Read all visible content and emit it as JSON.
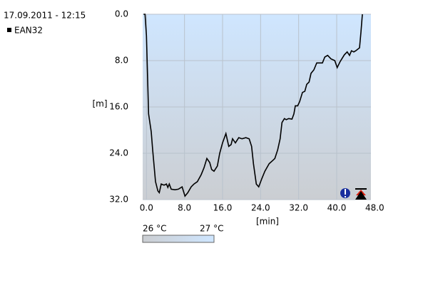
{
  "chart_data": {
    "type": "line",
    "title": "17.09.2011 - 12:15",
    "x_label": "[min]",
    "y_label": "[m]",
    "x": [
      -0.6,
      -0.3,
      0,
      0.45,
      1.0,
      1.3,
      1.9,
      2.4,
      2.7,
      3.1,
      3.7,
      4.2,
      4.5,
      4.8,
      5.2,
      6.0,
      6.7,
      7.5,
      8.1,
      8.7,
      9.4,
      10.0,
      10.7,
      11.5,
      12.1,
      12.7,
      13.3,
      13.7,
      14.2,
      14.9,
      15.4,
      16.0,
      16.7,
      17.3,
      17.8,
      18.1,
      18.7,
      19.4,
      20.1,
      20.9,
      21.6,
      22.1,
      22.5,
      23.1,
      23.6,
      24.3,
      24.9,
      25.8,
      26.6,
      27.0,
      27.6,
      28.1,
      28.5,
      29.0,
      29.4,
      29.9,
      30.6,
      31.0,
      31.3,
      31.8,
      32.2,
      32.8,
      33.3,
      33.7,
      34.2,
      34.6,
      35.2,
      35.8,
      36.6,
      37.0,
      37.5,
      38.1,
      38.8,
      39.6,
      40.1,
      40.7,
      41.6,
      42.2,
      42.7,
      43.1,
      43.6,
      44.0,
      44.8,
      45.1,
      45.4
    ],
    "series": [
      {
        "name": "EAN32",
        "color": "#000000",
        "values": [
          0,
          0,
          3.7,
          17.2,
          20.3,
          23.4,
          28.9,
          30.5,
          30.8,
          29.3,
          29.5,
          29.3,
          29.9,
          29.3,
          30.2,
          30.3,
          30.2,
          29.8,
          31.4,
          30.8,
          29.8,
          29.3,
          28.9,
          27.7,
          26.5,
          24.9,
          25.6,
          26.8,
          27.1,
          26.2,
          24.0,
          22.2,
          20.6,
          22.8,
          22.5,
          21.5,
          22.2,
          21.3,
          21.5,
          21.3,
          21.5,
          22.8,
          25.8,
          29.3,
          29.8,
          28.3,
          27.1,
          25.8,
          25.2,
          24.9,
          23.4,
          21.5,
          18.7,
          18.0,
          18.2,
          18.0,
          18.1,
          17.2,
          15.8,
          15.8,
          15.1,
          13.5,
          13.3,
          12.1,
          11.7,
          10.2,
          9.6,
          8.4,
          8.4,
          8.4,
          7.4,
          7.1,
          7.7,
          8.0,
          9.2,
          8.2,
          7.0,
          6.5,
          7.1,
          6.3,
          6.5,
          6.3,
          5.8,
          3.1,
          0
        ]
      }
    ],
    "xlim": [
      -0.8,
      47.2
    ],
    "ylim": [
      32,
      0
    ],
    "xticks": [
      {
        "value": 0,
        "label": "0.0"
      },
      {
        "value": 8,
        "label": "8.0"
      },
      {
        "value": 16,
        "label": "16.0"
      },
      {
        "value": 24,
        "label": "24.0"
      },
      {
        "value": 32,
        "label": "32.0"
      },
      {
        "value": 40,
        "label": "40.0"
      },
      {
        "value": 48,
        "label": "48.0"
      }
    ],
    "yticks": [
      {
        "value": 0,
        "label": "0.0"
      },
      {
        "value": 8,
        "label": "8.0"
      },
      {
        "value": 16,
        "label": "16.0"
      },
      {
        "value": 24,
        "label": "24.0"
      },
      {
        "value": 32,
        "label": "32.0"
      }
    ],
    "grid": true,
    "temperature_legend": {
      "min_label": "26 °C",
      "max_label": "27 °C"
    }
  }
}
